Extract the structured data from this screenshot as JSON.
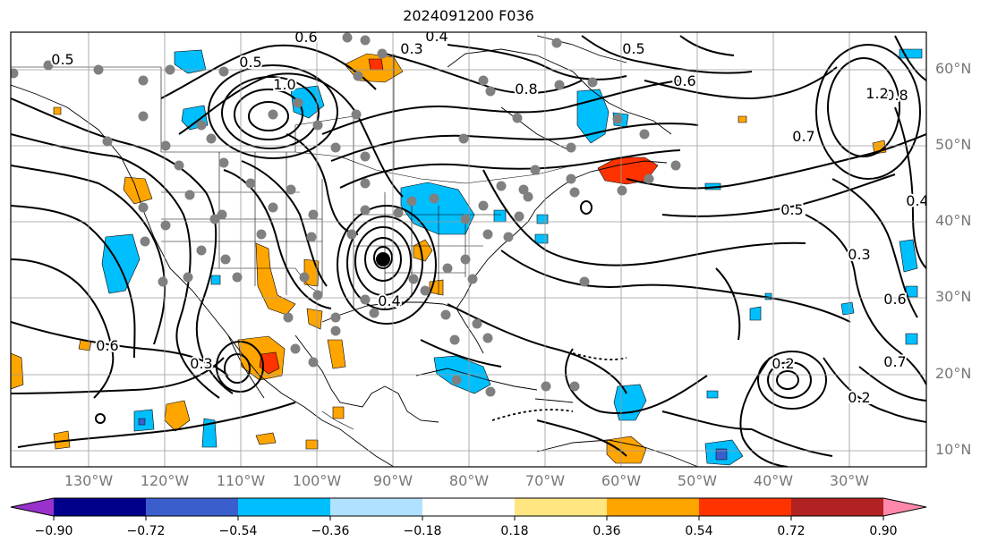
{
  "title": "2024091200 F036",
  "lat_labels": [
    "60°N",
    "50°N",
    "40°N",
    "30°N",
    "20°N",
    "10°N"
  ],
  "lon_labels": [
    "130°W",
    "120°W",
    "110°W",
    "100°W",
    "90°W",
    "80°W",
    "70°W",
    "60°W",
    "50°W",
    "40°W",
    "30°W"
  ],
  "colorbar": {
    "ticks": [
      "−0.90",
      "−0.72",
      "−0.54",
      "−0.36",
      "−0.18",
      "0.18",
      "0.36",
      "0.54",
      "0.72",
      "0.90"
    ],
    "colors": [
      "#9932cc",
      "#00008b",
      "#3a5fcd",
      "#00bfff",
      "#b0e2ff",
      "#ffffff",
      "#ffe680",
      "#ffa500",
      "#ff3300",
      "#b22222",
      "#ff88aa"
    ]
  },
  "contour_labels": [
    "0.6",
    "0.3",
    "0.4",
    "0.5",
    "0.8",
    "1.0",
    "0.7",
    "0.6",
    "0.8",
    "1.2",
    "0.5",
    "0.4",
    "0.6",
    "0.2",
    "0.3",
    "0.5",
    "0.6",
    "0.7",
    "0.2",
    "0.5",
    "0.3",
    "0.4"
  ]
}
